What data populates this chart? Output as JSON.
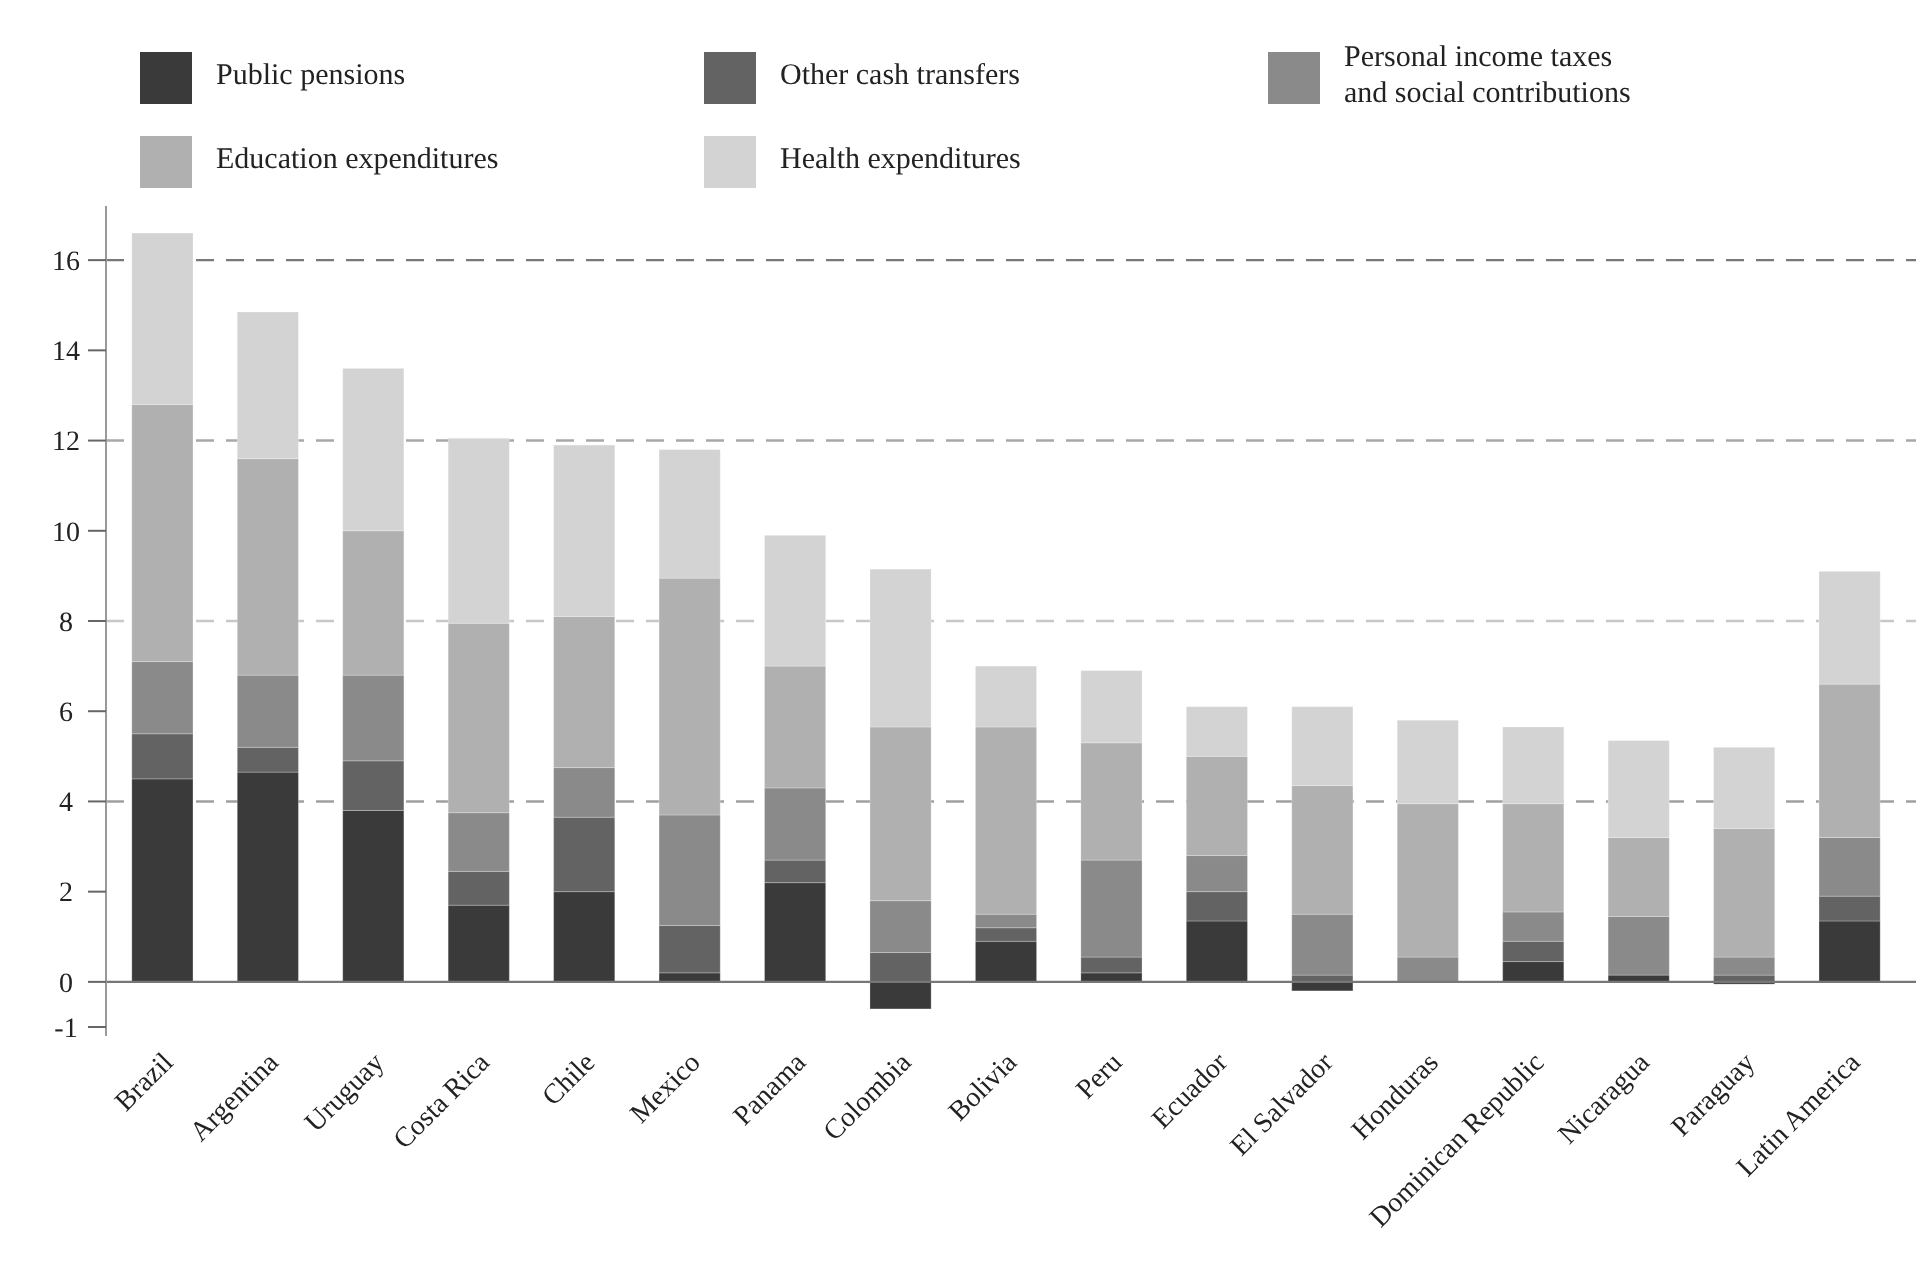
{
  "chart_data": {
    "type": "bar",
    "stacked": true,
    "categories": [
      "Brazil",
      "Argentina",
      "Uruguay",
      "Costa Rica",
      "Chile",
      "Mexico",
      "Panama",
      "Colombia",
      "Bolivia",
      "Peru",
      "Ecuador",
      "El Salvador",
      "Honduras",
      "Dominican Republic",
      "Nicaragua",
      "Paraguay",
      "Latin America"
    ],
    "series": [
      {
        "name": "Public pensions",
        "color": "#3a3a3a",
        "values": [
          4.5,
          4.65,
          3.8,
          1.7,
          2.0,
          0.2,
          2.2,
          -0.6,
          0.9,
          0.2,
          1.35,
          -0.2,
          0,
          0.45,
          0.15,
          -0.05,
          1.35
        ]
      },
      {
        "name": "Other cash transfers",
        "color": "#636363",
        "values": [
          1.0,
          0.55,
          1.1,
          0.75,
          1.65,
          1.05,
          0.5,
          0.65,
          0.3,
          0.35,
          0.65,
          0.15,
          0,
          0.45,
          0,
          0.15,
          0.55
        ]
      },
      {
        "name": "Personal income taxes and social contributions",
        "color": "#8a8a8a",
        "values": [
          1.6,
          1.6,
          1.9,
          1.3,
          1.1,
          2.45,
          1.6,
          1.15,
          0.3,
          2.15,
          0.8,
          1.35,
          0.55,
          0.65,
          1.3,
          0.4,
          1.3
        ]
      },
      {
        "name": "Education expenditures",
        "color": "#b0b0b0",
        "values": [
          5.7,
          4.8,
          3.2,
          4.2,
          3.35,
          5.25,
          2.7,
          3.85,
          4.15,
          2.6,
          2.2,
          2.85,
          3.4,
          2.4,
          1.75,
          2.85,
          3.4
        ]
      },
      {
        "name": "Health expenditures",
        "color": "#d3d3d3",
        "values": [
          3.8,
          3.25,
          3.6,
          4.1,
          3.8,
          2.85,
          2.9,
          3.5,
          1.35,
          1.6,
          1.1,
          1.75,
          1.85,
          1.7,
          2.15,
          1.8,
          2.5
        ]
      }
    ],
    "ylim": [
      -1.2,
      17.2
    ],
    "yticks": [
      -1,
      0,
      2,
      4,
      6,
      8,
      10,
      12,
      14,
      16
    ],
    "ref_lines": [
      {
        "axis": "y",
        "value": 4,
        "color": "#a0a0a0",
        "line_style": "dashed"
      },
      {
        "axis": "y",
        "value": 8,
        "color": "#c8c8c8",
        "line_style": "dashed"
      },
      {
        "axis": "y",
        "value": 12,
        "color": "#a8a8a8",
        "line_style": "dashed"
      },
      {
        "axis": "y",
        "value": 16,
        "color": "#787878",
        "line_style": "dashed"
      }
    ],
    "legend": "top left"
  }
}
